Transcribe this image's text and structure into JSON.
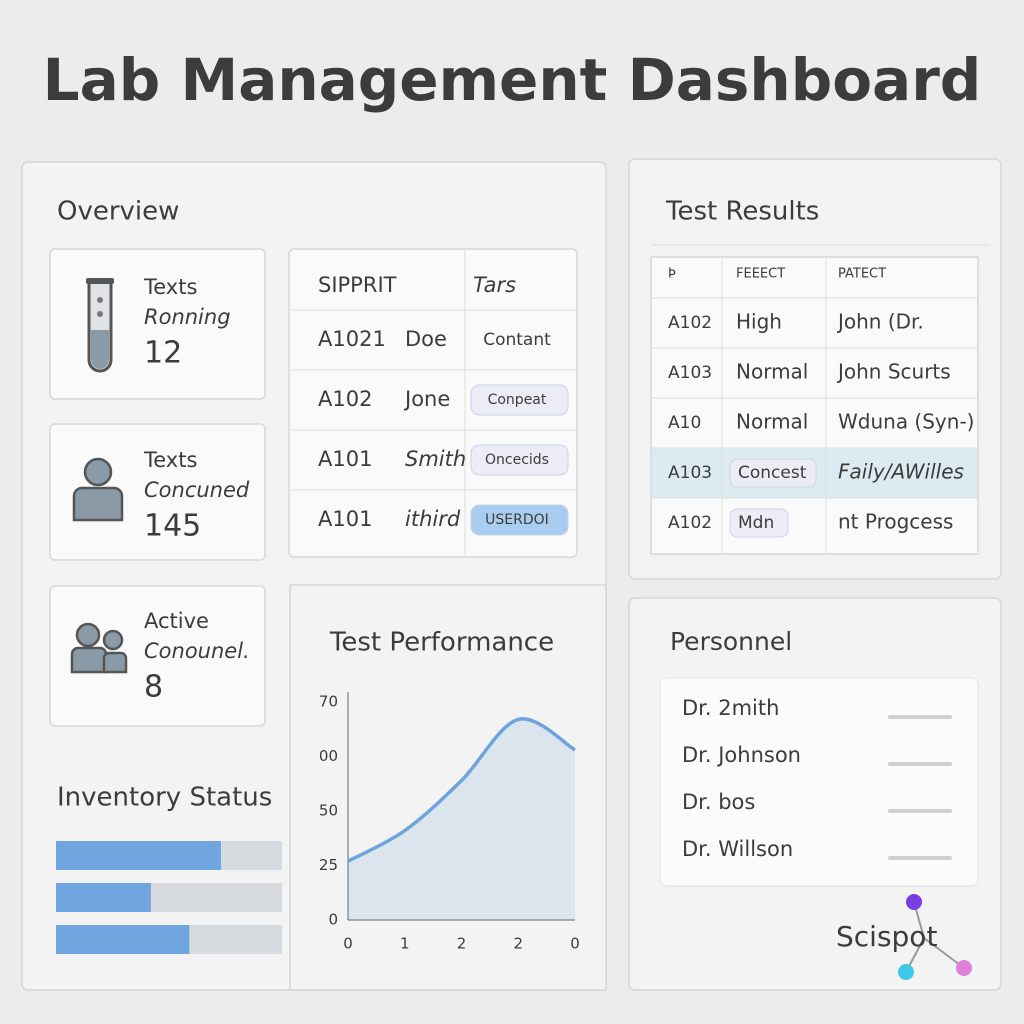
{
  "header": {
    "title": "Lab Management Dashboard"
  },
  "overview": {
    "title": "Overview",
    "cards": [
      {
        "lines": [
          "Texts",
          "Ronning"
        ],
        "value": "12"
      },
      {
        "lines": [
          "Texts",
          "Concuned"
        ],
        "value": "145"
      },
      {
        "lines": [
          "Active",
          "Conounel."
        ],
        "value": "8"
      }
    ]
  },
  "samples_table": {
    "columns": [
      "SIPPRIT",
      "Tars"
    ],
    "rows": [
      {
        "id": "A1021",
        "name": "Doe",
        "status": "Contant",
        "badge": false
      },
      {
        "id": "A102",
        "name": "Jone",
        "status": "Conpeat",
        "badge": true
      },
      {
        "id": "A101",
        "name": "Smith",
        "status": "Oncecids",
        "badge": true
      },
      {
        "id": "A101",
        "name": "ithird",
        "status": "USERDOI",
        "badge": true
      }
    ]
  },
  "test_results": {
    "title": "Test Results",
    "columns": [
      "Þ",
      "FEEECT",
      "PATECT"
    ],
    "rows": [
      {
        "cells": [
          "A102",
          "High",
          "John (Dr."
        ],
        "badge": false,
        "highlight": false
      },
      {
        "cells": [
          "A103",
          "Normal",
          "John Scurts"
        ],
        "badge": false,
        "highlight": false
      },
      {
        "cells": [
          "A10",
          "Normal",
          "Wduna (Syn-)"
        ],
        "badge": false,
        "highlight": false
      },
      {
        "cells": [
          "A103",
          "Concest",
          "Faily/AWilles"
        ],
        "badge": true,
        "highlight": true
      },
      {
        "cells": [
          "A102",
          "Mdn",
          "nt Progcess"
        ],
        "badge": true,
        "highlight": false
      }
    ]
  },
  "performance": {
    "title": "Test Performance",
    "y_labels": [
      "0",
      "25",
      "50",
      "00",
      "70"
    ],
    "x_labels": [
      "0",
      "1",
      "2",
      "2",
      "0"
    ],
    "ylim": [
      0,
      100
    ],
    "values": [
      27,
      41,
      64,
      92,
      78
    ],
    "color": "#6fa3dc"
  },
  "inventory": {
    "title": "Inventory Status",
    "xlim": [
      0,
      100
    ],
    "values": [
      73,
      42,
      59
    ],
    "color": "#6fa6e0"
  },
  "personnel": {
    "title": "Personnel",
    "names": [
      "Dr. 2mith",
      "Dr. Johnson",
      "Dr. bos",
      "Dr. Willson"
    ]
  },
  "logo": {
    "text": "Scispot"
  }
}
